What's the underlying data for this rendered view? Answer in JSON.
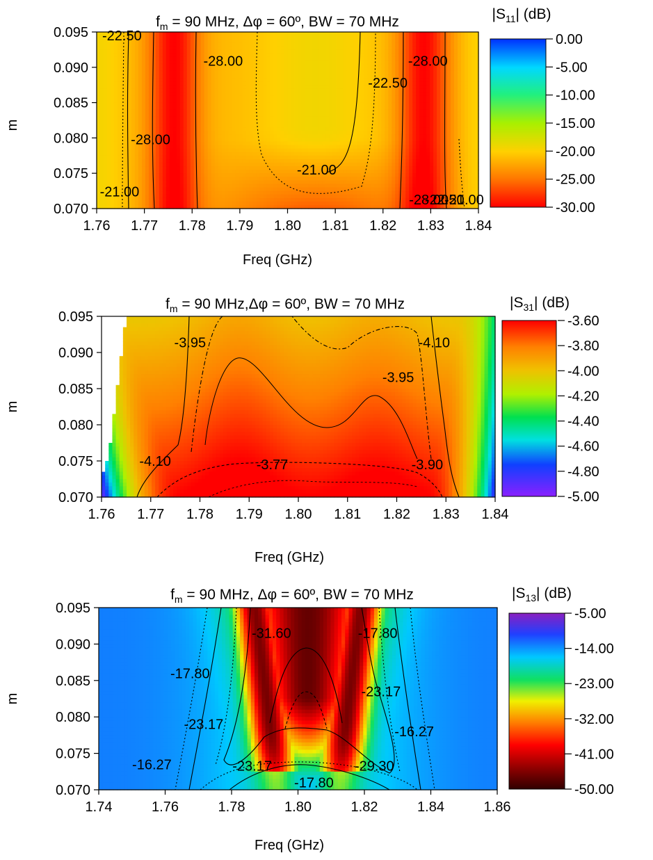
{
  "chart_data": [
    {
      "type": "heatmap",
      "title_prefix": "f",
      "title_sub": "m",
      "title_rest": " = 90 MHz, Δφ = 60º, BW = 70 MHz",
      "xlabel": "Freq (GHz)",
      "ylabel": "m",
      "xlim": [
        1.76,
        1.84
      ],
      "ylim": [
        0.07,
        0.095
      ],
      "x_ticks": [
        "1.76",
        "1.77",
        "1.78",
        "1.79",
        "1.80",
        "1.81",
        "1.82",
        "1.83",
        "1.84"
      ],
      "y_ticks": [
        "0.070",
        "0.075",
        "0.080",
        "0.085",
        "0.090",
        "0.095"
      ],
      "colorbar": {
        "title_pre": "|S",
        "title_sub": "11",
        "title_post": "| (dB)",
        "range": [
          -30,
          0
        ],
        "ticks": [
          "0.00",
          "-5.00",
          "-10.00",
          "-15.00",
          "-20.00",
          "-25.00",
          "-30.00"
        ],
        "scale": "red-low"
      },
      "contour_labels": [
        {
          "text": "-22.50",
          "x": 1.7653,
          "y": 0.0945
        },
        {
          "text": "-28.00",
          "x": 1.7865,
          "y": 0.0909
        },
        {
          "text": "-28.00",
          "x": 1.8294,
          "y": 0.0909
        },
        {
          "text": "-22.50",
          "x": 1.821,
          "y": 0.0878
        },
        {
          "text": "-28.00",
          "x": 1.7713,
          "y": 0.0798
        },
        {
          "text": "-21.00",
          "x": 1.8061,
          "y": 0.0755
        },
        {
          "text": "-21.00",
          "x": 1.7648,
          "y": 0.0724
        },
        {
          "text": "-28.00",
          "x": 1.8296,
          "y": 0.0713
        },
        {
          "text": "-22.50",
          "x": 1.8329,
          "y": 0.0713
        },
        {
          "text": "-21.00",
          "x": 1.837,
          "y": 0.0713
        }
      ],
      "features": [
        {
          "name": "left red band",
          "x_range": [
            1.7715,
            1.7805
          ],
          "value": -30
        },
        {
          "name": "right red band",
          "x_range": [
            1.824,
            1.833
          ],
          "value": -30
        },
        {
          "name": "central plateau",
          "x": 1.806,
          "y": 0.083,
          "value": -20.5
        }
      ]
    },
    {
      "type": "heatmap",
      "title_prefix": "f",
      "title_sub": "m",
      "title_rest": " = 90 MHz,Δφ = 60º, BW = 70 MHz",
      "xlabel": "Freq (GHz)",
      "ylabel": "m",
      "xlim": [
        1.76,
        1.84
      ],
      "ylim": [
        0.07,
        0.095
      ],
      "x_ticks": [
        "1.76",
        "1.77",
        "1.78",
        "1.79",
        "1.80",
        "1.81",
        "1.82",
        "1.83",
        "1.84"
      ],
      "y_ticks": [
        "0.070",
        "0.075",
        "0.080",
        "0.085",
        "0.090",
        "0.095"
      ],
      "colorbar": {
        "title_pre": "|S",
        "title_sub": "31",
        "title_post": "| (dB)",
        "range": [
          -5.0,
          -3.6
        ],
        "ticks": [
          "-3.60",
          "-3.80",
          "-4.00",
          "-4.20",
          "-4.40",
          "-4.60",
          "-4.80",
          "-5.00"
        ],
        "scale": "red-high"
      },
      "contour_labels": [
        {
          "text": "-3.95",
          "x": 1.778,
          "y": 0.0914
        },
        {
          "text": "-4.10",
          "x": 1.8276,
          "y": 0.0914
        },
        {
          "text": "-3.95",
          "x": 1.8203,
          "y": 0.0866
        },
        {
          "text": "-4.10",
          "x": 1.7709,
          "y": 0.075
        },
        {
          "text": "-3.77",
          "x": 1.7947,
          "y": 0.0745
        },
        {
          "text": "-3.90",
          "x": 1.8262,
          "y": 0.0745
        }
      ],
      "features": [
        {
          "name": "peak near bottom",
          "x": 1.8,
          "y": 0.0705,
          "value": -3.65
        },
        {
          "name": "left edge minimum",
          "x": 1.7615,
          "y": 0.095,
          "value": -5.0
        },
        {
          "name": "right edge minimum",
          "x": 1.8385,
          "y": 0.095,
          "value": -4.85
        }
      ]
    },
    {
      "type": "heatmap",
      "title_prefix": "f",
      "title_sub": "m",
      "title_rest": " = 90 MHz, Δφ = 60º, BW = 70 MHz",
      "xlabel": "Freq (GHz)",
      "ylabel": "m",
      "xlim": [
        1.74,
        1.86
      ],
      "ylim": [
        0.07,
        0.095
      ],
      "x_ticks": [
        "1.74",
        "1.76",
        "1.78",
        "1.80",
        "1.82",
        "1.84",
        "1.86"
      ],
      "y_ticks": [
        "0.070",
        "0.075",
        "0.080",
        "0.085",
        "0.090",
        "0.095"
      ],
      "colorbar": {
        "title_pre": "|S",
        "title_sub": "13",
        "title_post": "| (dB)",
        "range": [
          -50,
          -5
        ],
        "ticks": [
          "-5.00",
          "-14.00",
          "-23.00",
          "-32.00",
          "-41.00",
          "-50.00"
        ],
        "scale": "s13"
      },
      "contour_labels": [
        {
          "text": "-31.60",
          "x": 1.792,
          "y": 0.0915
        },
        {
          "text": "-17.80",
          "x": 1.824,
          "y": 0.0915
        },
        {
          "text": "-17.80",
          "x": 1.7675,
          "y": 0.086
        },
        {
          "text": "-23.17",
          "x": 1.825,
          "y": 0.0835
        },
        {
          "text": "-23.17",
          "x": 1.7716,
          "y": 0.079
        },
        {
          "text": "-16.27",
          "x": 1.835,
          "y": 0.078
        },
        {
          "text": "-16.27",
          "x": 1.756,
          "y": 0.0735
        },
        {
          "text": "-23.17",
          "x": 1.7862,
          "y": 0.0733
        },
        {
          "text": "-29.30",
          "x": 1.823,
          "y": 0.0733
        },
        {
          "text": "-17.80",
          "x": 1.8048,
          "y": 0.071
        }
      ],
      "features": [
        {
          "name": "deep notch band (V shape)",
          "value": -32
        },
        {
          "name": "background",
          "value": -14
        },
        {
          "name": "bottom center min",
          "x": 1.803,
          "y": 0.07,
          "value": -18
        }
      ]
    }
  ]
}
